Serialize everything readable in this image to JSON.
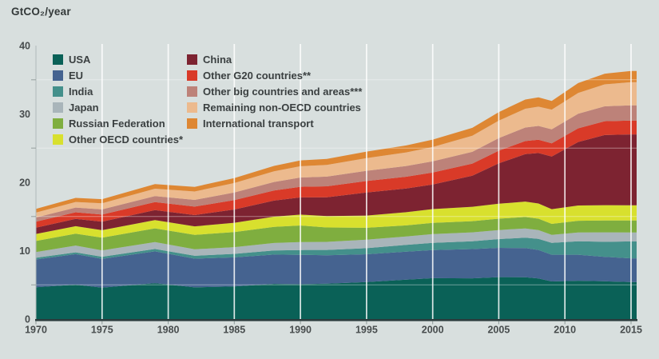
{
  "chart_data": {
    "type": "area",
    "stacked": true,
    "title": "GtCO₂/year",
    "xlabel": "",
    "ylabel": "GtCO₂/year",
    "xlim": [
      1970,
      2015
    ],
    "ylim": [
      0,
      40
    ],
    "yticks": [
      0,
      10,
      20,
      30,
      40
    ],
    "y_minor_ticks": [
      5,
      15,
      25,
      35
    ],
    "xticks": [
      1970,
      1975,
      1980,
      1985,
      1990,
      1995,
      2000,
      2005,
      2010,
      2015
    ],
    "grid": "on",
    "legend_position": "top-left-two-columns",
    "x": [
      1970,
      1973,
      1975,
      1979,
      1982,
      1985,
      1988,
      1990,
      1992,
      1995,
      1998,
      2000,
      2003,
      2005,
      2007,
      2008,
      2009,
      2011,
      2013,
      2015
    ],
    "series": [
      {
        "name": "USA",
        "color": "#0a6157",
        "values": [
          4.66,
          5.03,
          4.6,
          5.25,
          4.63,
          4.77,
          5.15,
          5.09,
          5.18,
          5.42,
          5.75,
          5.98,
          5.95,
          6.13,
          6.12,
          5.93,
          5.5,
          5.6,
          5.52,
          5.41
        ]
      },
      {
        "name": "EU",
        "color": "#456390",
        "values": [
          4.05,
          4.45,
          4.2,
          4.65,
          4.2,
          4.25,
          4.28,
          4.3,
          4.15,
          4.05,
          4.1,
          4.11,
          4.28,
          4.28,
          4.25,
          4.18,
          3.9,
          3.8,
          3.58,
          3.47
        ]
      },
      {
        "name": "India",
        "color": "#44908b",
        "values": [
          0.25,
          0.28,
          0.31,
          0.35,
          0.42,
          0.51,
          0.61,
          0.7,
          0.78,
          0.89,
          1.0,
          1.06,
          1.15,
          1.29,
          1.52,
          1.62,
          1.73,
          1.97,
          2.2,
          2.48
        ]
      },
      {
        "name": "Japan",
        "color": "#a9b5ba",
        "values": [
          0.84,
          0.99,
          0.94,
          1.01,
          0.95,
          0.99,
          1.08,
          1.16,
          1.18,
          1.25,
          1.23,
          1.28,
          1.3,
          1.32,
          1.36,
          1.28,
          1.18,
          1.28,
          1.38,
          1.29
        ]
      },
      {
        "name": "Russian Federation",
        "color": "#7fae3f",
        "values": [
          1.62,
          1.73,
          1.85,
          2.0,
          2.1,
          2.2,
          2.35,
          2.44,
          2.1,
          1.74,
          1.62,
          1.64,
          1.64,
          1.66,
          1.67,
          1.67,
          1.61,
          1.72,
          1.74,
          1.76
        ]
      },
      {
        "name": "Other OECD countries*",
        "color": "#d8e02e",
        "values": [
          1.02,
          1.1,
          1.1,
          1.22,
          1.25,
          1.36,
          1.5,
          1.59,
          1.66,
          1.79,
          1.92,
          2.01,
          2.1,
          2.19,
          2.26,
          2.22,
          2.15,
          2.24,
          2.23,
          2.22
        ]
      },
      {
        "name": "China",
        "color": "#7d2331",
        "values": [
          0.92,
          1.06,
          1.23,
          1.45,
          1.65,
          1.94,
          2.35,
          2.51,
          2.76,
          3.37,
          3.47,
          3.61,
          4.54,
          5.9,
          6.94,
          7.38,
          7.71,
          9.29,
          10.26,
          10.37
        ]
      },
      {
        "name": "Other G20 countries**",
        "color": "#d93a28",
        "values": [
          0.88,
          0.97,
          1.05,
          1.18,
          1.25,
          1.37,
          1.47,
          1.55,
          1.6,
          1.68,
          1.73,
          1.75,
          1.78,
          1.85,
          1.92,
          1.95,
          1.92,
          2.0,
          2.02,
          2.04
        ]
      },
      {
        "name": "Other big countries and areas***",
        "color": "#bd8279",
        "values": [
          0.61,
          0.69,
          0.75,
          0.88,
          0.98,
          1.11,
          1.26,
          1.36,
          1.42,
          1.5,
          1.57,
          1.62,
          1.72,
          1.85,
          1.97,
          2.02,
          2.05,
          2.12,
          2.18,
          2.22
        ]
      },
      {
        "name": "Remaining non-OECD countries",
        "color": "#ecba8e",
        "values": [
          0.72,
          0.82,
          0.9,
          1.08,
          1.22,
          1.4,
          1.55,
          1.65,
          1.72,
          1.85,
          1.98,
          2.1,
          2.35,
          2.55,
          2.75,
          2.82,
          2.88,
          3.05,
          3.22,
          3.38
        ]
      },
      {
        "name": "International transport",
        "color": "#de8733",
        "values": [
          0.55,
          0.6,
          0.6,
          0.66,
          0.68,
          0.72,
          0.8,
          0.85,
          0.88,
          0.95,
          1.02,
          1.08,
          1.15,
          1.25,
          1.35,
          1.35,
          1.28,
          1.45,
          1.55,
          1.65
        ]
      }
    ],
    "legend_column1_series": [
      0,
      1,
      2,
      3,
      4,
      5
    ],
    "legend_column2_series": [
      6,
      7,
      8,
      9,
      10
    ]
  },
  "colors": {
    "background": "#d8dfde",
    "x_axis_line": "#2c3c3d",
    "y_axis_line": "#b0bab9",
    "gridline_vertical": "rgba(255,255,255,0.85)",
    "gridline_horizontal": "rgba(255,255,255,0.4)",
    "tick_text": "#474c4d",
    "title_text": "#343a3a"
  }
}
